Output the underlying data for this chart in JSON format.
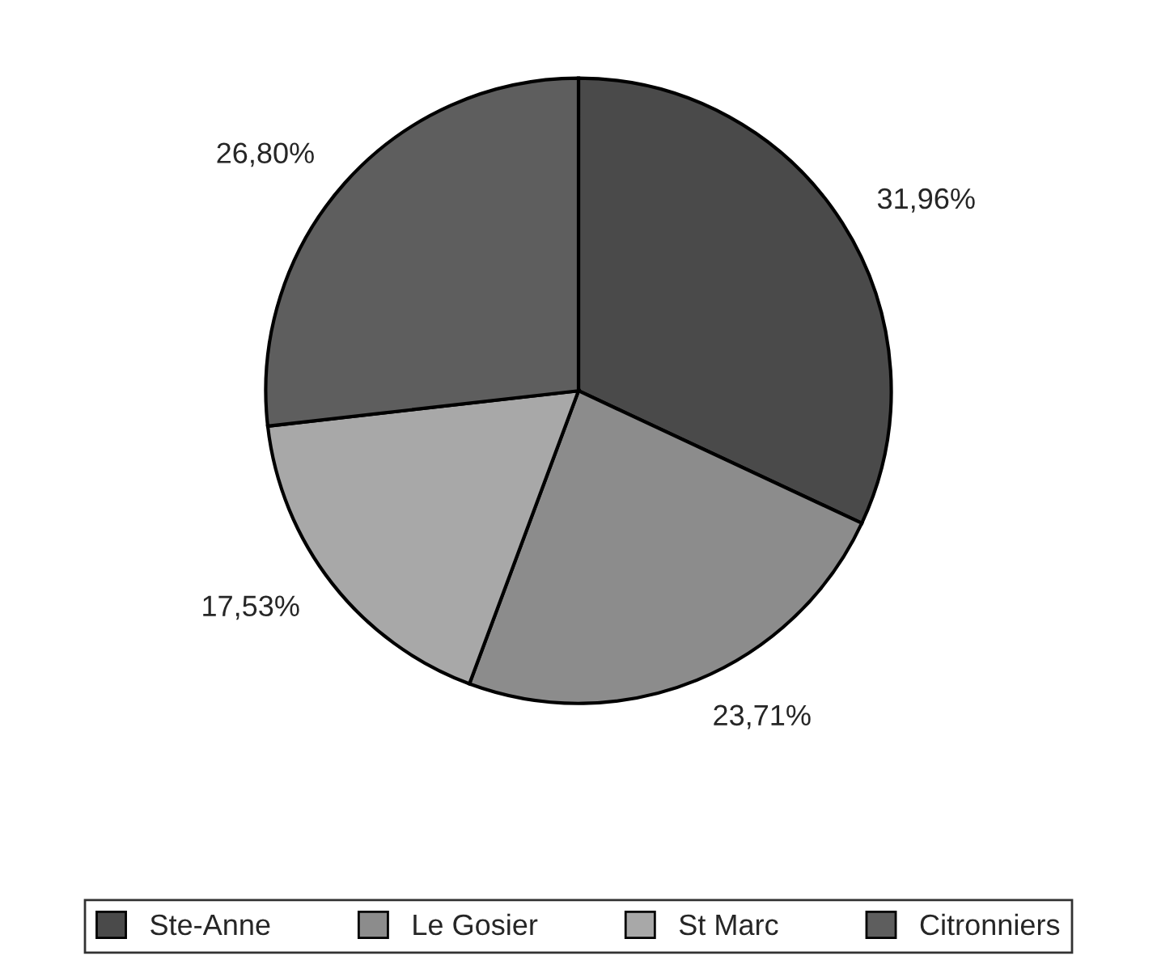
{
  "chart_data": {
    "type": "pie",
    "categories": [
      "Ste-Anne",
      "Le Gosier",
      "St Marc",
      "Citronniers"
    ],
    "values": [
      31.96,
      23.71,
      17.53,
      26.8
    ],
    "value_labels": [
      "31,96%",
      "23,71%",
      "17,53%",
      "26,80%"
    ],
    "colors": [
      "#4a4a4a",
      "#8c8c8c",
      "#a8a8a8",
      "#5e5e5e"
    ],
    "legend": "bottom"
  }
}
